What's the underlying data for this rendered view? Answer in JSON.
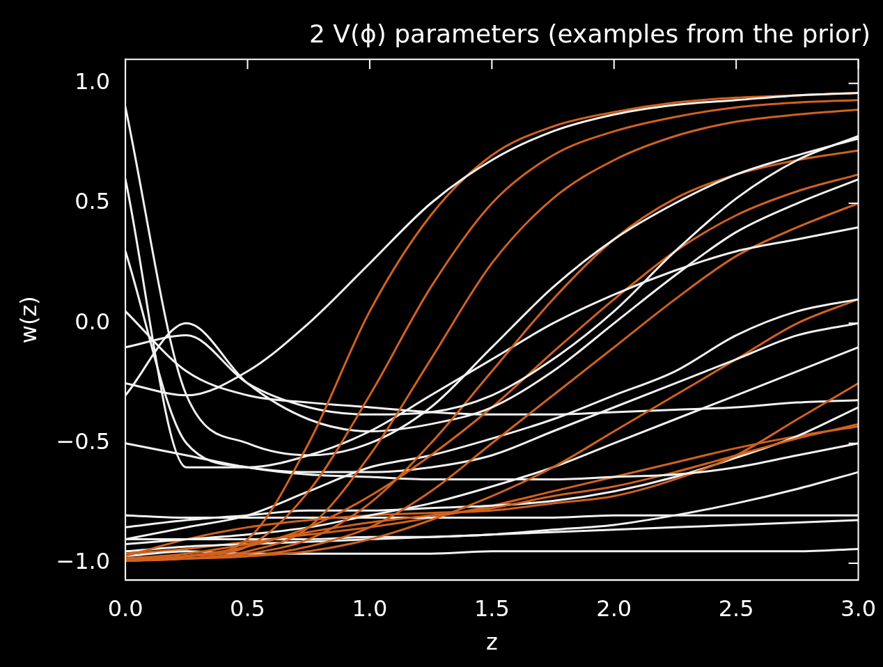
{
  "chart_data": {
    "type": "line",
    "title": "2 V(ϕ) parameters (examples from the prior)",
    "xlabel": "z",
    "ylabel": "w(z)",
    "x": [
      0,
      0.25,
      0.5,
      0.75,
      1,
      1.25,
      1.5,
      1.75,
      2,
      2.25,
      2.5,
      2.75,
      3
    ],
    "xlim": [
      0,
      3
    ],
    "xticks": [
      {
        "value": 0,
        "label": "0.0"
      },
      {
        "value": 0.5,
        "label": "0.5"
      },
      {
        "value": 1,
        "label": "1.0"
      },
      {
        "value": 1.5,
        "label": "1.5"
      },
      {
        "value": 2,
        "label": "2.0"
      },
      {
        "value": 2.5,
        "label": "2.5"
      },
      {
        "value": 3,
        "label": "3.0"
      }
    ],
    "ylim": [
      -1.07,
      1.1
    ],
    "yticks": [
      {
        "value": -1,
        "label": "−1.0"
      },
      {
        "value": -0.5,
        "label": "−0.5"
      },
      {
        "value": 0,
        "label": "0.0"
      },
      {
        "value": 0.5,
        "label": "0.5"
      },
      {
        "value": 1,
        "label": "1.0"
      }
    ],
    "grid": false,
    "legend": false,
    "marker": "none",
    "line_style": "solid",
    "series": [
      {
        "color": "#f2f2f2",
        "values": [
          -0.25,
          -0.3,
          -0.2,
          0.0,
          0.25,
          0.5,
          0.68,
          0.8,
          0.87,
          0.91,
          0.93,
          0.95,
          0.96
        ]
      },
      {
        "color": "#d2621e",
        "values": [
          -0.98,
          -0.97,
          -0.9,
          -0.5,
          0.05,
          0.45,
          0.7,
          0.82,
          0.88,
          0.92,
          0.94,
          0.95,
          0.96
        ]
      },
      {
        "color": "#d2621e",
        "values": [
          -0.98,
          -0.97,
          -0.93,
          -0.7,
          -0.3,
          0.15,
          0.5,
          0.7,
          0.8,
          0.86,
          0.9,
          0.92,
          0.93
        ]
      },
      {
        "color": "#d2621e",
        "values": [
          -0.99,
          -0.98,
          -0.95,
          -0.85,
          -0.55,
          -0.15,
          0.25,
          0.52,
          0.68,
          0.78,
          0.84,
          0.87,
          0.89
        ]
      },
      {
        "color": "#f2f2f2",
        "values": [
          0.9,
          -0.3,
          -0.5,
          -0.55,
          -0.5,
          -0.35,
          -0.1,
          0.15,
          0.35,
          0.5,
          0.62,
          0.7,
          0.77
        ]
      },
      {
        "color": "#f2f2f2",
        "values": [
          -0.1,
          -0.05,
          -0.25,
          -0.35,
          -0.38,
          -0.37,
          -0.3,
          -0.15,
          0.05,
          0.3,
          0.52,
          0.68,
          0.78
        ]
      },
      {
        "color": "#d2621e",
        "values": [
          -0.99,
          -0.98,
          -0.96,
          -0.9,
          -0.75,
          -0.5,
          -0.2,
          0.1,
          0.35,
          0.52,
          0.62,
          0.68,
          0.72
        ]
      },
      {
        "color": "#f2f2f2",
        "values": [
          -0.3,
          0.0,
          -0.25,
          -0.4,
          -0.45,
          -0.42,
          -0.35,
          -0.2,
          0.0,
          0.2,
          0.38,
          0.5,
          0.6
        ]
      },
      {
        "color": "#f2f2f2",
        "values": [
          0.6,
          -0.6,
          -0.6,
          -0.55,
          -0.45,
          -0.3,
          -0.15,
          0.0,
          0.12,
          0.22,
          0.3,
          0.35,
          0.4
        ]
      },
      {
        "color": "#d2621e",
        "values": [
          -0.99,
          -0.98,
          -0.97,
          -0.93,
          -0.85,
          -0.7,
          -0.5,
          -0.3,
          -0.1,
          0.1,
          0.28,
          0.4,
          0.5
        ]
      },
      {
        "color": "#d2621e",
        "values": [
          -0.99,
          -0.97,
          -0.93,
          -0.85,
          -0.72,
          -0.55,
          -0.35,
          -0.12,
          0.1,
          0.3,
          0.45,
          0.55,
          0.62
        ]
      },
      {
        "color": "#f2f2f2",
        "values": [
          -0.9,
          -0.85,
          -0.8,
          -0.7,
          -0.6,
          -0.55,
          -0.48,
          -0.4,
          -0.3,
          -0.2,
          -0.05,
          0.05,
          0.1
        ]
      },
      {
        "color": "#f2f2f2",
        "values": [
          -0.5,
          -0.55,
          -0.6,
          -0.62,
          -0.62,
          -0.6,
          -0.55,
          -0.45,
          -0.35,
          -0.25,
          -0.15,
          -0.05,
          0.0
        ]
      },
      {
        "color": "#d2621e",
        "values": [
          -0.99,
          -0.98,
          -0.97,
          -0.95,
          -0.9,
          -0.82,
          -0.72,
          -0.6,
          -0.45,
          -0.3,
          -0.15,
          0.0,
          0.1
        ]
      },
      {
        "color": "#f2f2f2",
        "values": [
          -0.92,
          -0.9,
          -0.88,
          -0.85,
          -0.8,
          -0.75,
          -0.68,
          -0.6,
          -0.5,
          -0.4,
          -0.3,
          -0.2,
          -0.1
        ]
      },
      {
        "color": "#f2f2f2",
        "values": [
          0.3,
          -0.5,
          -0.6,
          -0.63,
          -0.64,
          -0.65,
          -0.65,
          -0.65,
          -0.64,
          -0.63,
          -0.6,
          -0.55,
          -0.5
        ]
      },
      {
        "color": "#d2621e",
        "values": [
          -0.98,
          -0.96,
          -0.92,
          -0.87,
          -0.83,
          -0.8,
          -0.77,
          -0.72,
          -0.68,
          -0.62,
          -0.55,
          -0.48,
          -0.42
        ]
      },
      {
        "color": "#d2621e",
        "values": [
          -0.97,
          -0.9,
          -0.85,
          -0.82,
          -0.8,
          -0.79,
          -0.78,
          -0.75,
          -0.72,
          -0.65,
          -0.55,
          -0.4,
          -0.25
        ]
      },
      {
        "color": "#f2f2f2",
        "values": [
          -0.85,
          -0.82,
          -0.8,
          -0.78,
          -0.78,
          -0.77,
          -0.76,
          -0.74,
          -0.7,
          -0.64,
          -0.56,
          -0.47,
          -0.35
        ]
      },
      {
        "color": "#f2f2f2",
        "values": [
          -0.95,
          -0.93,
          -0.92,
          -0.91,
          -0.9,
          -0.89,
          -0.88,
          -0.86,
          -0.84,
          -0.8,
          -0.75,
          -0.69,
          -0.62
        ]
      },
      {
        "color": "#f2f2f2",
        "values": [
          -0.8,
          -0.81,
          -0.81,
          -0.81,
          -0.81,
          -0.81,
          -0.81,
          -0.81,
          -0.8,
          -0.8,
          -0.8,
          -0.8,
          -0.8
        ]
      },
      {
        "color": "#f2f2f2",
        "values": [
          -0.97,
          -0.95,
          -0.96,
          -0.96,
          -0.96,
          -0.96,
          -0.95,
          -0.95,
          -0.95,
          -0.95,
          -0.95,
          -0.95,
          -0.94
        ]
      },
      {
        "color": "#f2f2f2",
        "values": [
          -0.9,
          -0.9,
          -0.9,
          -0.9,
          -0.89,
          -0.89,
          -0.88,
          -0.87,
          -0.86,
          -0.85,
          -0.84,
          -0.83,
          -0.82
        ]
      },
      {
        "color": "#d2621e",
        "values": [
          -0.96,
          -0.94,
          -0.91,
          -0.88,
          -0.85,
          -0.81,
          -0.76,
          -0.7,
          -0.64,
          -0.58,
          -0.52,
          -0.47,
          -0.43
        ]
      },
      {
        "color": "#f2f2f2",
        "values": [
          0.05,
          -0.2,
          -0.3,
          -0.33,
          -0.35,
          -0.37,
          -0.38,
          -0.38,
          -0.37,
          -0.36,
          -0.35,
          -0.33,
          -0.32
        ]
      }
    ]
  }
}
